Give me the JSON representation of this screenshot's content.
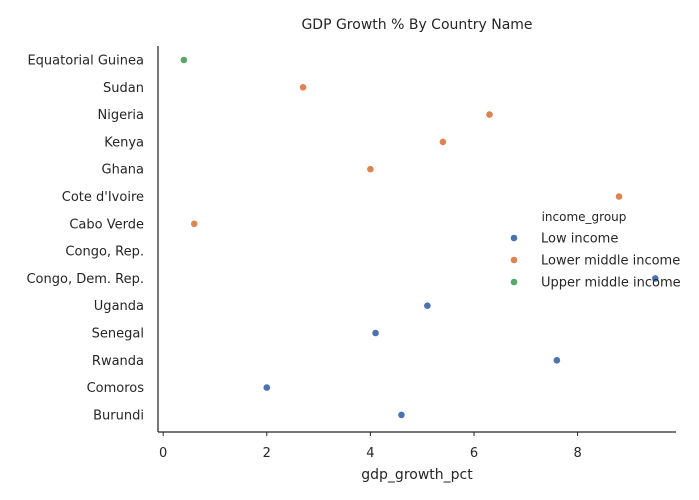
{
  "chart_data": {
    "type": "scatter",
    "title": "GDP Growth % By Country Name",
    "xlabel": "gdp_growth_pct",
    "ylabel": "",
    "xlim": [
      -0.1,
      9.9
    ],
    "xticks": [
      0,
      2,
      4,
      6,
      8
    ],
    "categories": [
      "Equatorial Guinea",
      "Sudan",
      "Nigeria",
      "Kenya",
      "Ghana",
      "Cote d'Ivoire",
      "Cabo Verde",
      "Congo, Rep.",
      "Congo, Dem. Rep.",
      "Uganda",
      "Senegal",
      "Rwanda",
      "Comoros",
      "Burundi"
    ],
    "grid": false,
    "legend": {
      "title": "income_group",
      "placement": "right"
    },
    "series": [
      {
        "name": "Low income",
        "color": "#4c72b0",
        "points": [
          {
            "y": "Congo, Dem. Rep.",
            "x": 9.5
          },
          {
            "y": "Uganda",
            "x": 5.1
          },
          {
            "y": "Senegal",
            "x": 4.1
          },
          {
            "y": "Rwanda",
            "x": 7.6
          },
          {
            "y": "Comoros",
            "x": 2.0
          },
          {
            "y": "Burundi",
            "x": 4.6
          }
        ]
      },
      {
        "name": "Lower middle income",
        "color": "#dd8452",
        "points": [
          {
            "y": "Sudan",
            "x": 2.7
          },
          {
            "y": "Nigeria",
            "x": 6.3
          },
          {
            "y": "Kenya",
            "x": 5.4
          },
          {
            "y": "Ghana",
            "x": 4.0
          },
          {
            "y": "Cote d'Ivoire",
            "x": 8.8
          },
          {
            "y": "Cabo Verde",
            "x": 0.6
          }
        ]
      },
      {
        "name": "Upper middle income",
        "color": "#55a868",
        "points": [
          {
            "y": "Equatorial Guinea",
            "x": 0.4
          }
        ]
      }
    ]
  }
}
